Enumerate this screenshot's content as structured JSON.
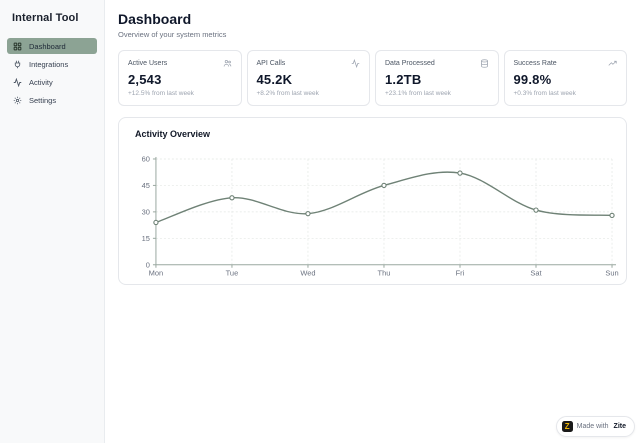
{
  "sidebar": {
    "title": "Internal Tool",
    "items": [
      {
        "label": "Dashboard",
        "icon": "grid-icon",
        "active": true
      },
      {
        "label": "Integrations",
        "icon": "plug-icon",
        "active": false
      },
      {
        "label": "Activity",
        "icon": "activity-icon",
        "active": false
      },
      {
        "label": "Settings",
        "icon": "gear-icon",
        "active": false
      }
    ]
  },
  "header": {
    "title": "Dashboard",
    "subtitle": "Overview of your system metrics"
  },
  "stats": [
    {
      "label": "Active Users",
      "value": "2,543",
      "change": "+12.5% from last week",
      "icon": "users-icon"
    },
    {
      "label": "API Calls",
      "value": "45.2K",
      "change": "+8.2% from last week",
      "icon": "activity-icon"
    },
    {
      "label": "Data Processed",
      "value": "1.2TB",
      "change": "+23.1% from last week",
      "icon": "database-icon"
    },
    {
      "label": "Success Rate",
      "value": "99.8%",
      "change": "+0.3% from last week",
      "icon": "trending-up-icon"
    }
  ],
  "chart_data": {
    "type": "line",
    "title": "Activity Overview",
    "categories": [
      "Mon",
      "Tue",
      "Wed",
      "Thu",
      "Fri",
      "Sat",
      "Sun"
    ],
    "values": [
      24,
      38,
      29,
      45,
      52,
      31,
      28
    ],
    "xlabel": "",
    "ylabel": "",
    "ylim": [
      0,
      60
    ],
    "yticks": [
      0,
      15,
      30,
      45,
      60
    ],
    "grid": true,
    "legend": false,
    "line_color": "#6f8276",
    "marker": "open-circle",
    "grid_color": "#e3e7e4",
    "axis_color": "#9aa8a0",
    "tick_label_color": "#6b7280"
  },
  "footer": {
    "logo_letter": "Z",
    "badge_prefix": "Made with",
    "badge_brand": "Zite"
  },
  "colors": {
    "accent": "#8ca394",
    "sidebar_bg": "#f8f9fa",
    "card_border": "#e5e7eb",
    "muted_text": "#9ca3af"
  }
}
